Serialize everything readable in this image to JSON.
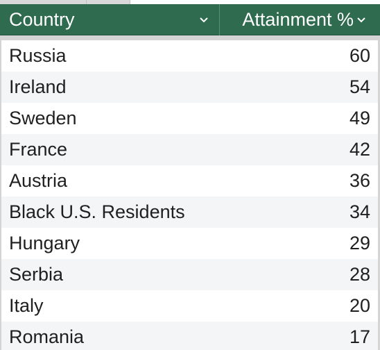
{
  "table": {
    "headers": {
      "country": "Country",
      "attainment": "Attainment %"
    },
    "filter_icon": "chevron-down-icon",
    "header_color": "#2f6b4f",
    "rows": [
      {
        "country": "Russia",
        "value": "60"
      },
      {
        "country": "Ireland",
        "value": "54"
      },
      {
        "country": "Sweden",
        "value": "49"
      },
      {
        "country": "France",
        "value": "42"
      },
      {
        "country": "Austria",
        "value": "36"
      },
      {
        "country": "Black U.S. Residents",
        "value": "34"
      },
      {
        "country": "Hungary",
        "value": "29"
      },
      {
        "country": "Serbia",
        "value": "28"
      },
      {
        "country": "Italy",
        "value": "20"
      },
      {
        "country": "Romania",
        "value": "17"
      }
    ]
  }
}
